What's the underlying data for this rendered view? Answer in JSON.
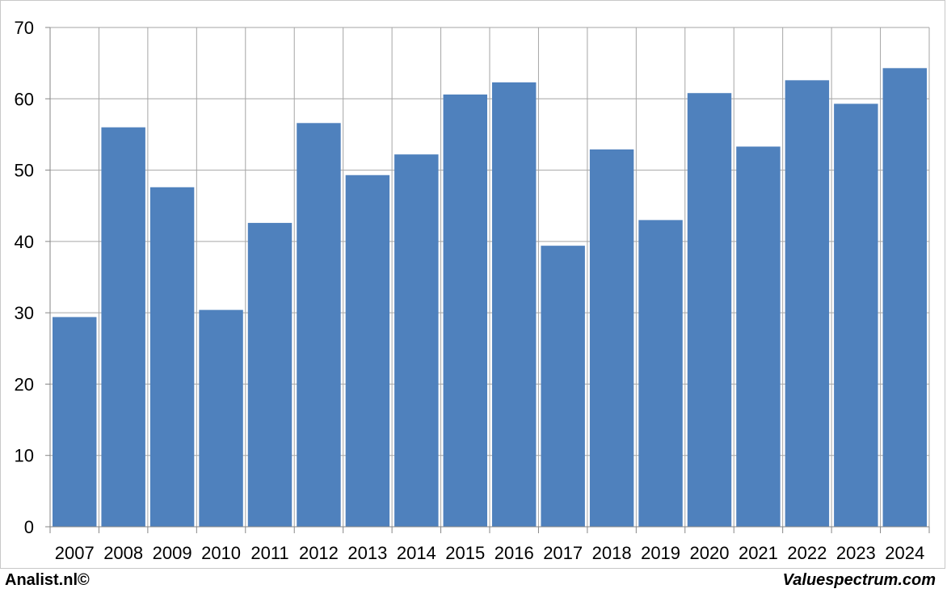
{
  "chart_data": {
    "type": "bar",
    "title": "",
    "xlabel": "",
    "ylabel": "",
    "categories": [
      "2007",
      "2008",
      "2009",
      "2010",
      "2011",
      "2012",
      "2013",
      "2014",
      "2015",
      "2016",
      "2017",
      "2018",
      "2019",
      "2020",
      "2021",
      "2022",
      "2023",
      "2024"
    ],
    "values": [
      29.4,
      56.0,
      47.6,
      30.4,
      42.6,
      56.6,
      49.3,
      52.2,
      60.6,
      62.3,
      39.4,
      52.9,
      43.0,
      60.8,
      53.3,
      62.6,
      59.3,
      64.3
    ],
    "ylim": [
      0,
      70
    ],
    "yticks": [
      0,
      10,
      20,
      30,
      40,
      50,
      60,
      70
    ],
    "grid": true,
    "bar_color": "#4f81bd",
    "grid_color": "#a6a6a6"
  },
  "footer": {
    "left": "Analist.nl©",
    "right": "Valuespectrum.com"
  }
}
